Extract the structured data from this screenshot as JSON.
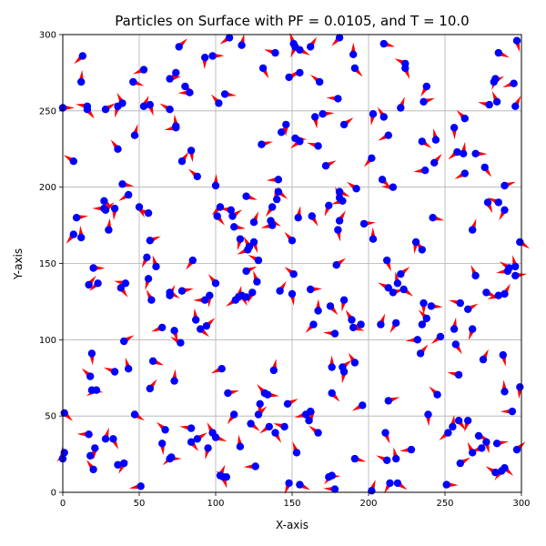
{
  "chart_data": {
    "type": "scatter",
    "title": "Particles on Surface with PF = 0.0105, and T = 10.0",
    "xlabel": "X-axis",
    "ylabel": "Y-axis",
    "xlim": [
      0,
      300
    ],
    "ylim": [
      0,
      300
    ],
    "xticks": [
      "0",
      "50",
      "100",
      "150",
      "200",
      "250",
      "300"
    ],
    "yticks": [
      "0",
      "50",
      "100",
      "150",
      "200",
      "250",
      "300"
    ],
    "grid": true,
    "point_color": "#0000ff",
    "arrow_color": "#ff0000",
    "points": [
      [
        0,
        252
      ],
      [
        13,
        286
      ],
      [
        12,
        269
      ],
      [
        16,
        251
      ],
      [
        16,
        253
      ],
      [
        28,
        251
      ],
      [
        36,
        253
      ],
      [
        39,
        255
      ],
      [
        46,
        269
      ],
      [
        53,
        277
      ],
      [
        53,
        253
      ],
      [
        57,
        254
      ],
      [
        70,
        251
      ],
      [
        70,
        271
      ],
      [
        74,
        275
      ],
      [
        74,
        240
      ],
      [
        80,
        266
      ],
      [
        83,
        262
      ],
      [
        76,
        292
      ],
      [
        93,
        285
      ],
      [
        102,
        255
      ],
      [
        106,
        261
      ],
      [
        109,
        298
      ],
      [
        117,
        293
      ],
      [
        131,
        278
      ],
      [
        139,
        288
      ],
      [
        148,
        272
      ],
      [
        152,
        292
      ],
      [
        151,
        294
      ],
      [
        155,
        290
      ],
      [
        155,
        275
      ],
      [
        162,
        292
      ],
      [
        165,
        246
      ],
      [
        168,
        269
      ],
      [
        170,
        248
      ],
      [
        181,
        298
      ],
      [
        190,
        287
      ],
      [
        191,
        278
      ],
      [
        180,
        258
      ],
      [
        184,
        241
      ],
      [
        203,
        248
      ],
      [
        210,
        246
      ],
      [
        210,
        294
      ],
      [
        213,
        234
      ],
      [
        221,
        252
      ],
      [
        224,
        278
      ],
      [
        224,
        281
      ],
      [
        236,
        256
      ],
      [
        238,
        266
      ],
      [
        244,
        231
      ],
      [
        235,
        230
      ],
      [
        237,
        211
      ],
      [
        243,
        216
      ],
      [
        256,
        239
      ],
      [
        263,
        245
      ],
      [
        270,
        222
      ],
      [
        258,
        223
      ],
      [
        262,
        222
      ],
      [
        276,
        213
      ],
      [
        279,
        254
      ],
      [
        282,
        269
      ],
      [
        283,
        271
      ],
      [
        284,
        256
      ],
      [
        285,
        288
      ],
      [
        295,
        268
      ],
      [
        296,
        253
      ],
      [
        297,
        296
      ],
      [
        7,
        217
      ],
      [
        9,
        180
      ],
      [
        7,
        169
      ],
      [
        12,
        167
      ],
      [
        27,
        191
      ],
      [
        27,
        186
      ],
      [
        28,
        185
      ],
      [
        34,
        186
      ],
      [
        36,
        225
      ],
      [
        39,
        202
      ],
      [
        43,
        195
      ],
      [
        47,
        234
      ],
      [
        50,
        187
      ],
      [
        56,
        183
      ],
      [
        57,
        165
      ],
      [
        55,
        154
      ],
      [
        61,
        148
      ],
      [
        70,
        131
      ],
      [
        74,
        239
      ],
      [
        78,
        217
      ],
      [
        84,
        224
      ],
      [
        88,
        207
      ],
      [
        98,
        286
      ],
      [
        103,
        187
      ],
      [
        100,
        201
      ],
      [
        101,
        181
      ],
      [
        110,
        185
      ],
      [
        111,
        181
      ],
      [
        116,
        166
      ],
      [
        122,
        161
      ],
      [
        120,
        194
      ],
      [
        121,
        159
      ],
      [
        125,
        177
      ],
      [
        125,
        164
      ],
      [
        128,
        152
      ],
      [
        130,
        228
      ],
      [
        137,
        187
      ],
      [
        140,
        192
      ],
      [
        141,
        197
      ],
      [
        141,
        205
      ],
      [
        143,
        236
      ],
      [
        146,
        241
      ],
      [
        150,
        165
      ],
      [
        152,
        232
      ],
      [
        155,
        230
      ],
      [
        154,
        180
      ],
      [
        163,
        181
      ],
      [
        167,
        227
      ],
      [
        172,
        214
      ],
      [
        174,
        188
      ],
      [
        181,
        193
      ],
      [
        181,
        197
      ],
      [
        183,
        191
      ],
      [
        181,
        178
      ],
      [
        180,
        172
      ],
      [
        192,
        199
      ],
      [
        197,
        176
      ],
      [
        202,
        219
      ],
      [
        203,
        166
      ],
      [
        209,
        205
      ],
      [
        216,
        200
      ],
      [
        221,
        143
      ],
      [
        231,
        164
      ],
      [
        235,
        159
      ],
      [
        242,
        180
      ],
      [
        263,
        209
      ],
      [
        268,
        172
      ],
      [
        278,
        190
      ],
      [
        285,
        190
      ],
      [
        289,
        201
      ],
      [
        289,
        185
      ],
      [
        296,
        148
      ],
      [
        299,
        164
      ],
      [
        291,
        145
      ],
      [
        17,
        136
      ],
      [
        19,
        91
      ],
      [
        18,
        76
      ],
      [
        20,
        147
      ],
      [
        23,
        137
      ],
      [
        30,
        172
      ],
      [
        38,
        134
      ],
      [
        41,
        137
      ],
      [
        40,
        99
      ],
      [
        56,
        140
      ],
      [
        58,
        126
      ],
      [
        59,
        86
      ],
      [
        65,
        108
      ],
      [
        70,
        129
      ],
      [
        73,
        106
      ],
      [
        77,
        98
      ],
      [
        78,
        132
      ],
      [
        85,
        152
      ],
      [
        87,
        113
      ],
      [
        90,
        107
      ],
      [
        93,
        126
      ],
      [
        94,
        109
      ],
      [
        96,
        129
      ],
      [
        100,
        137
      ],
      [
        112,
        174
      ],
      [
        113,
        126
      ],
      [
        115,
        128
      ],
      [
        117,
        129
      ],
      [
        120,
        128
      ],
      [
        120,
        145
      ],
      [
        124,
        131
      ],
      [
        127,
        138
      ],
      [
        136,
        178
      ],
      [
        137,
        175
      ],
      [
        142,
        132
      ],
      [
        150,
        130
      ],
      [
        151,
        143
      ],
      [
        162,
        133
      ],
      [
        164,
        110
      ],
      [
        167,
        119
      ],
      [
        175,
        122
      ],
      [
        178,
        104
      ],
      [
        179,
        149
      ],
      [
        184,
        126
      ],
      [
        189,
        113
      ],
      [
        190,
        108
      ],
      [
        195,
        110
      ],
      [
        208,
        110
      ],
      [
        212,
        152
      ],
      [
        213,
        134
      ],
      [
        216,
        131
      ],
      [
        218,
        111
      ],
      [
        219,
        137
      ],
      [
        223,
        133
      ],
      [
        232,
        100
      ],
      [
        235,
        110
      ],
      [
        236,
        124
      ],
      [
        238,
        114
      ],
      [
        241,
        122
      ],
      [
        247,
        102
      ],
      [
        256,
        107
      ],
      [
        257,
        97
      ],
      [
        260,
        124
      ],
      [
        265,
        120
      ],
      [
        268,
        107
      ],
      [
        270,
        142
      ],
      [
        277,
        131
      ],
      [
        285,
        129
      ],
      [
        289,
        130
      ],
      [
        288,
        90
      ],
      [
        292,
        147
      ],
      [
        296,
        142
      ],
      [
        1,
        26
      ],
      [
        0,
        22
      ],
      [
        1,
        52
      ],
      [
        17,
        38
      ],
      [
        18,
        24
      ],
      [
        21,
        29
      ],
      [
        20,
        15
      ],
      [
        19,
        67
      ],
      [
        22,
        67
      ],
      [
        28,
        35
      ],
      [
        33,
        35
      ],
      [
        34,
        79
      ],
      [
        36,
        18
      ],
      [
        40,
        19
      ],
      [
        43,
        81
      ],
      [
        47,
        51
      ],
      [
        51,
        4
      ],
      [
        57,
        68
      ],
      [
        65,
        32
      ],
      [
        67,
        41
      ],
      [
        70,
        22
      ],
      [
        71,
        23
      ],
      [
        73,
        73
      ],
      [
        84,
        33
      ],
      [
        84,
        42
      ],
      [
        88,
        35
      ],
      [
        95,
        29
      ],
      [
        98,
        39
      ],
      [
        100,
        36
      ],
      [
        104,
        81
      ],
      [
        103,
        11
      ],
      [
        105,
        10
      ],
      [
        107,
        10
      ],
      [
        108,
        65
      ],
      [
        112,
        51
      ],
      [
        116,
        30
      ],
      [
        123,
        45
      ],
      [
        126,
        17
      ],
      [
        128,
        51
      ],
      [
        129,
        58
      ],
      [
        132,
        65
      ],
      [
        134,
        64
      ],
      [
        135,
        43
      ],
      [
        138,
        80
      ],
      [
        139,
        39
      ],
      [
        145,
        43
      ],
      [
        147,
        58
      ],
      [
        148,
        6
      ],
      [
        153,
        26
      ],
      [
        155,
        5
      ],
      [
        159,
        51
      ],
      [
        161,
        47
      ],
      [
        162,
        53
      ],
      [
        167,
        39
      ],
      [
        174,
        10
      ],
      [
        176,
        11
      ],
      [
        176,
        82
      ],
      [
        176,
        65
      ],
      [
        178,
        2
      ],
      [
        183,
        82
      ],
      [
        184,
        79
      ],
      [
        191,
        85
      ],
      [
        191,
        22
      ],
      [
        196,
        57
      ],
      [
        202,
        1
      ],
      [
        211,
        39
      ],
      [
        212,
        21
      ],
      [
        213,
        60
      ],
      [
        214,
        6
      ],
      [
        218,
        22
      ],
      [
        219,
        6
      ],
      [
        228,
        28
      ],
      [
        234,
        91
      ],
      [
        239,
        51
      ],
      [
        245,
        64
      ],
      [
        251,
        5
      ],
      [
        252,
        39
      ],
      [
        255,
        43
      ],
      [
        259,
        47
      ],
      [
        259,
        77
      ],
      [
        260,
        19
      ],
      [
        265,
        47
      ],
      [
        268,
        26
      ],
      [
        272,
        37
      ],
      [
        274,
        29
      ],
      [
        275,
        87
      ],
      [
        277,
        33
      ],
      [
        283,
        13
      ],
      [
        284,
        32
      ],
      [
        287,
        14
      ],
      [
        289,
        66
      ],
      [
        289,
        16
      ],
      [
        294,
        53
      ],
      [
        297,
        28
      ],
      [
        299,
        69
      ]
    ]
  }
}
